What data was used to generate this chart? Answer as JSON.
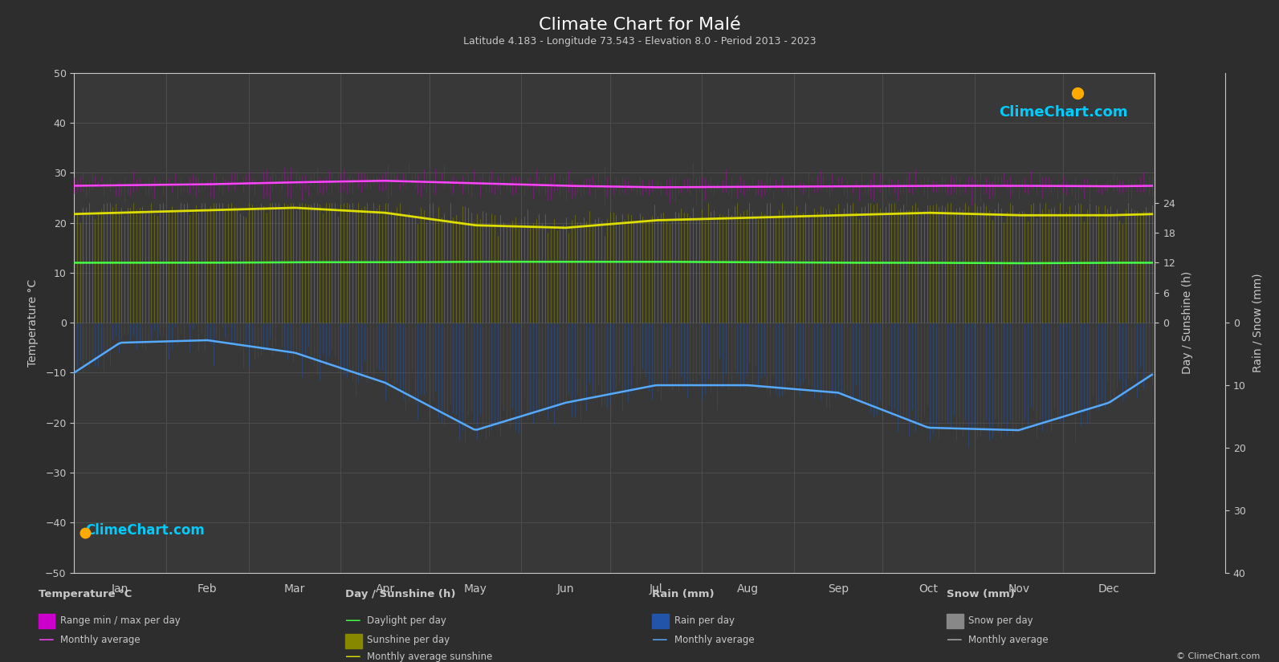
{
  "title": "Climate Chart for Malé",
  "subtitle": "Latitude 4.183 - Longitude 73.543 - Elevation 8.0 - Period 2013 - 2023",
  "months": [
    "Jan",
    "Feb",
    "Mar",
    "Apr",
    "May",
    "Jun",
    "Jul",
    "Aug",
    "Sep",
    "Oct",
    "Nov",
    "Dec"
  ],
  "days_in_month": [
    31,
    28,
    31,
    30,
    31,
    30,
    31,
    31,
    30,
    31,
    30,
    31
  ],
  "background_color": "#2d2d2d",
  "plot_bg_color": "#383838",
  "grid_color": "#505050",
  "text_color": "#c8c8c8",
  "temp_ylim": [
    -50,
    50
  ],
  "temp_max_monthly": [
    28.8,
    29.0,
    29.5,
    29.8,
    29.2,
    28.6,
    28.3,
    28.4,
    28.5,
    28.6,
    28.5,
    28.5
  ],
  "temp_min_monthly": [
    26.2,
    26.4,
    26.7,
    27.0,
    26.7,
    26.2,
    26.0,
    26.0,
    26.0,
    26.2,
    26.2,
    26.2
  ],
  "temp_avg_monthly": [
    27.5,
    27.7,
    28.1,
    28.4,
    27.9,
    27.4,
    27.1,
    27.2,
    27.3,
    27.4,
    27.4,
    27.3
  ],
  "sunshine_top_monthly": [
    22.8,
    23.2,
    23.8,
    23.2,
    20.8,
    20.2,
    21.8,
    22.2,
    22.8,
    23.2,
    22.8,
    22.5
  ],
  "daylight_monthly": [
    12.0,
    12.0,
    12.1,
    12.1,
    12.2,
    12.2,
    12.2,
    12.1,
    12.0,
    12.0,
    11.9,
    12.0
  ],
  "sunshine_avg_monthly": [
    22.0,
    22.5,
    23.0,
    22.0,
    19.5,
    19.0,
    20.5,
    21.0,
    21.5,
    22.0,
    21.5,
    21.5
  ],
  "rain_monthly_mm": [
    100,
    60,
    80,
    120,
    220,
    200,
    170,
    170,
    200,
    210,
    220,
    180
  ],
  "rain_monthly_avg_line": [
    -4.0,
    -3.5,
    -6.0,
    -12.0,
    -21.5,
    -16.0,
    -12.5,
    -12.5,
    -14.0,
    -21.0,
    -21.5,
    -16.0
  ],
  "noise_seed": 42,
  "temp_bar_color": "#cc00cc",
  "temp_bar_alpha": 0.55,
  "sunshine_bar_color": "#888800",
  "sunshine_bar_alpha": 0.85,
  "rain_bar_color": "#2255aa",
  "rain_bar_alpha": 0.75,
  "daylight_line_color": "#44ff44",
  "sunshine_avg_line_color": "#dddd00",
  "temp_avg_line_color": "#ff44ff",
  "rain_avg_line_color": "#55aaff",
  "logo_text": "ClimeChart.com",
  "copyright_text": "© ClimeChart.com"
}
